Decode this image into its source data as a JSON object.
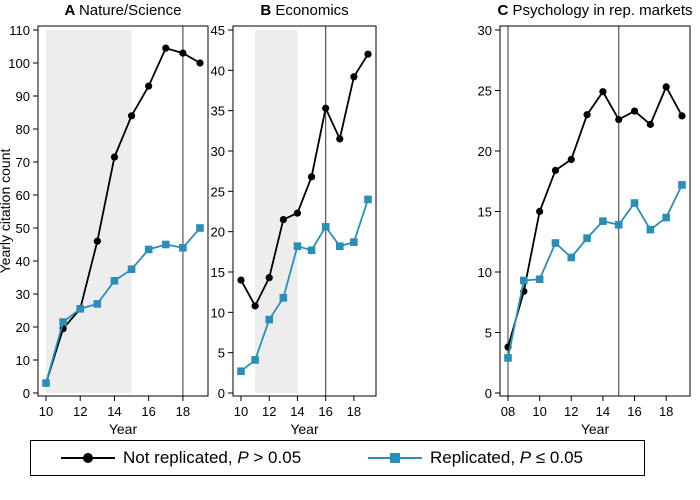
{
  "y_axis_label": "Yearly citation count",
  "colors": {
    "not_replicated": "#000000",
    "replicated": "#2a8fb8",
    "shade": "#ededed",
    "vline": "#555555"
  },
  "chart_data": [
    {
      "type": "line",
      "panel_letter": "A",
      "title": "Nature/Science",
      "xlabel": "Year",
      "xlim": [
        10,
        19
      ],
      "xticks": [
        10,
        12,
        14,
        16,
        18
      ],
      "xtick_labels": [
        "10",
        "12",
        "14",
        "16",
        "18"
      ],
      "ylim": [
        0,
        110
      ],
      "yticks": [
        0,
        10,
        20,
        30,
        40,
        50,
        60,
        70,
        80,
        90,
        100,
        110
      ],
      "shaded_region": [
        10,
        15
      ],
      "vline": 18,
      "series": [
        {
          "name": "Not replicated, P > 0.05",
          "x": [
            10,
            11,
            12,
            13,
            14,
            15,
            16,
            17,
            18,
            19
          ],
          "values": [
            3,
            19.5,
            25.5,
            46,
            71.5,
            84,
            93,
            104.5,
            103,
            100
          ]
        },
        {
          "name": "Replicated, P ≤ 0.05",
          "x": [
            10,
            11,
            12,
            13,
            14,
            15,
            16,
            17,
            18,
            19
          ],
          "values": [
            3,
            21.5,
            25.5,
            27,
            34,
            37.5,
            43.5,
            45,
            44,
            50
          ]
        }
      ]
    },
    {
      "type": "line",
      "panel_letter": "B",
      "title": "Economics",
      "xlabel": "Year",
      "xlim": [
        10,
        19
      ],
      "xticks": [
        10,
        12,
        14,
        16,
        18
      ],
      "xtick_labels": [
        "10",
        "12",
        "14",
        "16",
        "18"
      ],
      "ylim": [
        0,
        45
      ],
      "yticks": [
        0,
        5,
        10,
        15,
        20,
        25,
        30,
        35,
        40,
        45
      ],
      "shaded_region": [
        11,
        14
      ],
      "vline": 16,
      "series": [
        {
          "name": "Not replicated, P > 0.05",
          "x": [
            10,
            11,
            12,
            13,
            14,
            15,
            16,
            17,
            18,
            19
          ],
          "values": [
            14,
            10.8,
            14.3,
            21.5,
            22.3,
            26.8,
            35.3,
            31.5,
            39.2,
            42
          ]
        },
        {
          "name": "Replicated, P ≤ 0.05",
          "x": [
            10,
            11,
            12,
            13,
            14,
            15,
            16,
            17,
            18,
            19
          ],
          "values": [
            2.7,
            4.1,
            9.1,
            11.8,
            18.2,
            17.7,
            20.6,
            18.2,
            18.7,
            24
          ]
        }
      ]
    },
    {
      "type": "line",
      "panel_letter": "C",
      "title": "Psychology in rep. markets",
      "xlabel": "Year",
      "xlim": [
        8,
        19
      ],
      "xticks": [
        8,
        10,
        12,
        14,
        16,
        18
      ],
      "xtick_labels": [
        "08",
        "10",
        "12",
        "14",
        "16",
        "18"
      ],
      "ylim": [
        0,
        30
      ],
      "yticks": [
        0,
        5,
        10,
        15,
        20,
        25,
        30
      ],
      "shaded_region": null,
      "vlines": [
        8,
        15
      ],
      "series": [
        {
          "name": "Not replicated, P > 0.05",
          "x": [
            8,
            9,
            10,
            11,
            12,
            13,
            14,
            15,
            16,
            17,
            18,
            19
          ],
          "values": [
            3.8,
            8.4,
            15,
            18.4,
            19.3,
            23,
            24.9,
            22.6,
            23.3,
            22.2,
            25.3,
            22.9
          ]
        },
        {
          "name": "Replicated, P ≤ 0.05",
          "x": [
            8,
            9,
            10,
            11,
            12,
            13,
            14,
            15,
            16,
            17,
            18,
            19
          ],
          "values": [
            2.9,
            9.3,
            9.4,
            12.4,
            11.2,
            12.8,
            14.2,
            13.9,
            15.7,
            13.5,
            14.5,
            17.2
          ]
        }
      ]
    }
  ],
  "legend": {
    "not_replicated": {
      "text": "Not replicated, ",
      "p": "P",
      "rest": " > 0.05"
    },
    "replicated": {
      "text": "Replicated, ",
      "p": "P",
      "rest": " ≤ 0.05"
    }
  }
}
